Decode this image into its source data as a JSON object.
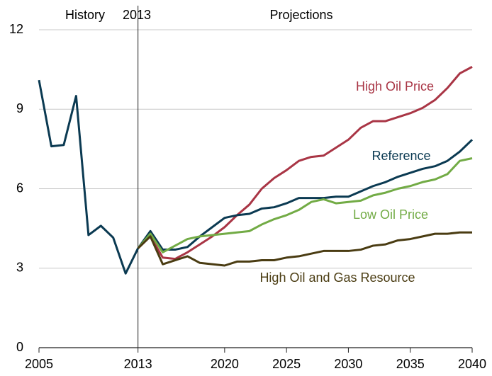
{
  "chart_data": {
    "type": "line",
    "annotations": [
      "History",
      "2013",
      "Projections"
    ],
    "x": [
      2005,
      2006,
      2007,
      2008,
      2009,
      2010,
      2011,
      2012,
      2013,
      2014,
      2015,
      2016,
      2017,
      2018,
      2019,
      2020,
      2021,
      2022,
      2023,
      2024,
      2025,
      2026,
      2027,
      2028,
      2029,
      2030,
      2031,
      2032,
      2033,
      2034,
      2035,
      2036,
      2037,
      2038,
      2039,
      2040
    ],
    "xlim": [
      2005,
      2040
    ],
    "xticks": [
      2005,
      2013,
      2020,
      2025,
      2030,
      2035,
      2040
    ],
    "ylim": [
      0,
      12
    ],
    "yticks": [
      0,
      3,
      6,
      9,
      12
    ],
    "grid": true,
    "series": [
      {
        "name": "High Oil Price",
        "color": "#a93545",
        "values": [
          null,
          null,
          null,
          null,
          null,
          null,
          null,
          null,
          3.75,
          4.2,
          3.4,
          3.35,
          3.6,
          3.9,
          4.2,
          4.55,
          5.0,
          5.4,
          6.0,
          6.4,
          6.7,
          7.05,
          7.2,
          7.25,
          7.55,
          7.85,
          8.3,
          8.55,
          8.55,
          8.7,
          8.85,
          9.05,
          9.35,
          9.8,
          10.35,
          10.6
        ]
      },
      {
        "name": "Reference",
        "color": "#0b3a52",
        "values": [
          10.1,
          7.6,
          7.65,
          9.5,
          4.25,
          4.6,
          4.15,
          2.8,
          3.75,
          4.4,
          3.7,
          3.7,
          3.8,
          4.2,
          4.55,
          4.9,
          5.0,
          5.05,
          5.25,
          5.3,
          5.45,
          5.65,
          5.65,
          5.65,
          5.7,
          5.7,
          5.9,
          6.1,
          6.25,
          6.45,
          6.6,
          6.75,
          6.85,
          7.05,
          7.4,
          7.85
        ]
      },
      {
        "name": "Low Oil Price",
        "color": "#72ab45",
        "values": [
          null,
          null,
          null,
          null,
          null,
          null,
          null,
          null,
          3.75,
          4.3,
          3.6,
          3.85,
          4.1,
          4.2,
          4.25,
          4.3,
          4.35,
          4.4,
          4.65,
          4.85,
          5.0,
          5.2,
          5.5,
          5.6,
          5.45,
          5.5,
          5.55,
          5.75,
          5.85,
          6.0,
          6.1,
          6.25,
          6.35,
          6.55,
          7.05,
          7.15
        ]
      },
      {
        "name": "High Oil and Gas Resource",
        "color": "#4a3c12",
        "values": [
          null,
          null,
          null,
          null,
          null,
          null,
          null,
          null,
          3.75,
          4.2,
          3.15,
          3.3,
          3.45,
          3.2,
          3.15,
          3.1,
          3.25,
          3.25,
          3.3,
          3.3,
          3.4,
          3.45,
          3.55,
          3.65,
          3.65,
          3.65,
          3.7,
          3.85,
          3.9,
          4.05,
          4.1,
          4.2,
          4.3,
          4.3,
          4.35,
          4.35
        ]
      }
    ]
  }
}
